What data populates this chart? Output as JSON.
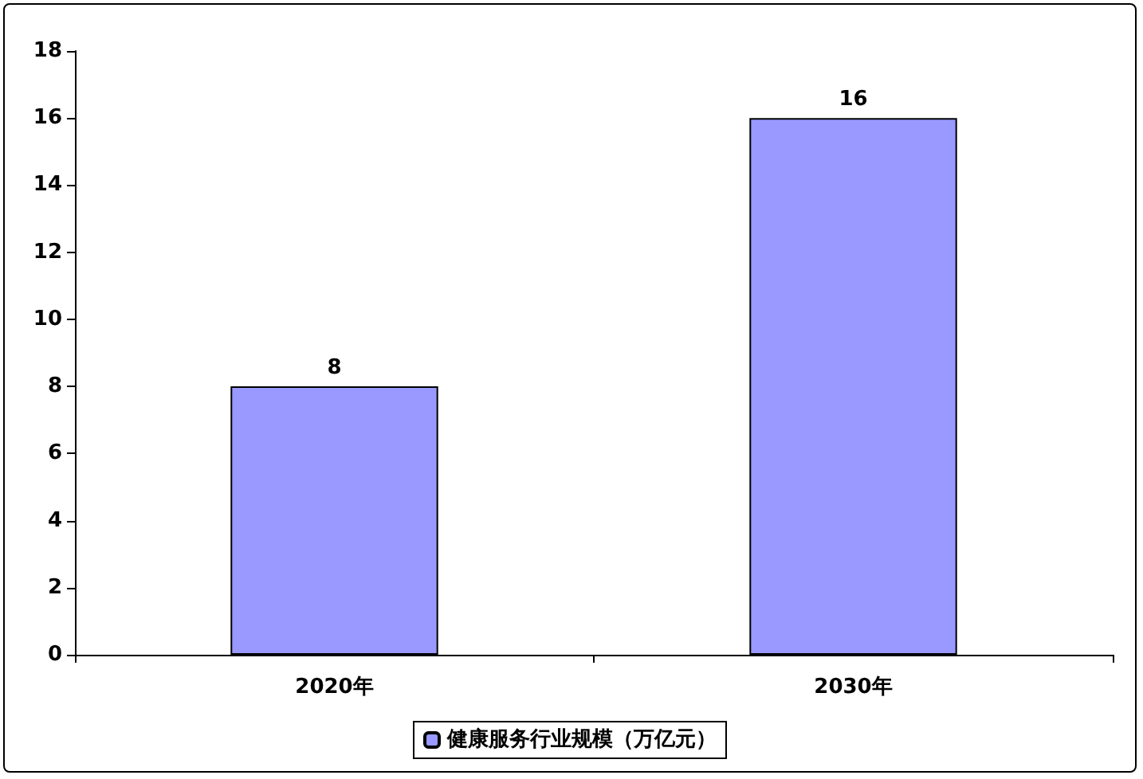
{
  "chart_data": {
    "type": "bar",
    "categories": [
      "2020年",
      "2030年"
    ],
    "series": [
      {
        "name": "健康服务行业规模（万亿元）",
        "color": "#9999ff",
        "values": [
          8,
          16
        ]
      }
    ],
    "ylim": [
      0,
      18
    ],
    "yticks": [
      0,
      2,
      4,
      6,
      8,
      10,
      12,
      14,
      16,
      18
    ],
    "grid": false,
    "legend": "bottom",
    "data_labels": true
  }
}
